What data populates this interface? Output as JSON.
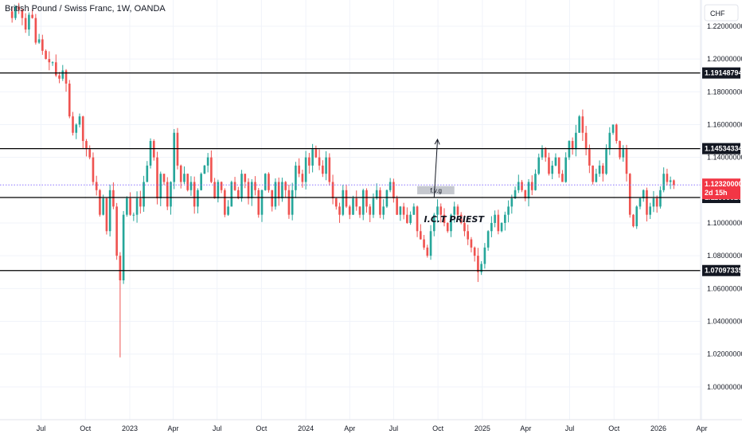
{
  "chart_data": {
    "type": "candlestick",
    "title": "British Pound / Swiss Franc, 1W, OANDA",
    "currency_label": "CHF",
    "ylim": [
      0.98,
      1.236
    ],
    "y_ticks": [
      "1.22000000",
      "1.20000000",
      "1.18000000",
      "1.16000000",
      "1.14000000",
      "1.10000000",
      "1.08000000",
      "1.06000000",
      "1.04000000",
      "1.02000000",
      "1.00000000"
    ],
    "x_ticks": [
      {
        "label": "Jul",
        "date": "2022-07-01"
      },
      {
        "label": "Oct",
        "date": "2022-10-01"
      },
      {
        "label": "2023",
        "date": "2023-01-01"
      },
      {
        "label": "Apr",
        "date": "2023-04-01"
      },
      {
        "label": "Jul",
        "date": "2023-07-01"
      },
      {
        "label": "Oct",
        "date": "2023-10-01"
      },
      {
        "label": "2024",
        "date": "2024-01-01"
      },
      {
        "label": "Apr",
        "date": "2024-04-01"
      },
      {
        "label": "Jul",
        "date": "2024-07-01"
      },
      {
        "label": "Oct",
        "date": "2024-10-01"
      },
      {
        "label": "2025",
        "date": "2025-01-01"
      },
      {
        "label": "Apr",
        "date": "2025-04-01"
      },
      {
        "label": "Jul",
        "date": "2025-07-01"
      },
      {
        "label": "Oct",
        "date": "2025-10-01"
      },
      {
        "label": "2026",
        "date": "2026-01-01"
      },
      {
        "label": "Apr",
        "date": "2026-04-01"
      }
    ],
    "horizontal_levels": [
      {
        "value": 1.19148794,
        "label": "1.19148794"
      },
      {
        "value": 1.14534334,
        "label": "1.14534334"
      },
      {
        "value": 1.11553827,
        "label": "1.11553827"
      },
      {
        "value": 1.07097335,
        "label": "1.07097335"
      }
    ],
    "current_price": {
      "value": 1.1232,
      "label": "1.12320000",
      "countdown": "2d 15h"
    },
    "fvg_zone": {
      "label": "f.v.g",
      "top": 1.1225,
      "bottom": 1.1175,
      "start": "2024-08-19",
      "end": "2024-11-04"
    },
    "arrow": {
      "from_date": "2024-09-23",
      "from_value": 1.1155,
      "to_date": "2024-09-30",
      "to_value": 1.151
    },
    "annotation": {
      "text": "I.C.T PRIEST",
      "date": "2024-09-02",
      "value": 1.1005
    },
    "candles_weekly_close": [
      1.225,
      1.232,
      1.23,
      1.225,
      1.218,
      1.227,
      1.225,
      1.21,
      1.212,
      1.205,
      1.2,
      1.198,
      1.198,
      1.19,
      1.188,
      1.193,
      1.185,
      1.165,
      1.155,
      1.16,
      1.165,
      1.15,
      1.145,
      1.14,
      1.125,
      1.12,
      1.105,
      1.115,
      1.095,
      1.12,
      1.11,
      1.08,
      1.065,
      1.105,
      1.115,
      1.105,
      1.105,
      1.115,
      1.11,
      1.125,
      1.135,
      1.15,
      1.14,
      1.115,
      1.13,
      1.125,
      1.11,
      1.125,
      1.155,
      1.135,
      1.125,
      1.13,
      1.12,
      1.125,
      1.11,
      1.12,
      1.13,
      1.135,
      1.14,
      1.125,
      1.115,
      1.125,
      1.12,
      1.105,
      1.11,
      1.125,
      1.12,
      1.115,
      1.13,
      1.125,
      1.115,
      1.125,
      1.12,
      1.105,
      1.12,
      1.13,
      1.12,
      1.11,
      1.125,
      1.115,
      1.125,
      1.12,
      1.105,
      1.12,
      1.135,
      1.13,
      1.125,
      1.14,
      1.135,
      1.145,
      1.14,
      1.135,
      1.13,
      1.14,
      1.125,
      1.115,
      1.11,
      1.105,
      1.12,
      1.11,
      1.105,
      1.115,
      1.11,
      1.105,
      1.12,
      1.11,
      1.105,
      1.115,
      1.12,
      1.105,
      1.11,
      1.12,
      1.125,
      1.115,
      1.105,
      1.11,
      1.105,
      1.1,
      1.105,
      1.11,
      1.095,
      1.09,
      1.085,
      1.08,
      1.095,
      1.105,
      1.11,
      1.105,
      1.1,
      1.095,
      1.105,
      1.11,
      1.105,
      1.1,
      1.095,
      1.09,
      1.085,
      1.08,
      1.07,
      1.075,
      1.085,
      1.095,
      1.1,
      1.105,
      1.095,
      1.1,
      1.105,
      1.11,
      1.115,
      1.12,
      1.125,
      1.12,
      1.115,
      1.125,
      1.12,
      1.13,
      1.14,
      1.145,
      1.14,
      1.13,
      1.135,
      1.14,
      1.13,
      1.125,
      1.14,
      1.15,
      1.145,
      1.155,
      1.165,
      1.155,
      1.145,
      1.135,
      1.125,
      1.13,
      1.135,
      1.13,
      1.145,
      1.155,
      1.16,
      1.15,
      1.14,
      1.145,
      1.13,
      1.105,
      1.098,
      1.11,
      1.115,
      1.12,
      1.105,
      1.11,
      1.115,
      1.11,
      1.12,
      1.13,
      1.125,
      1.126,
      1.1232
    ]
  }
}
